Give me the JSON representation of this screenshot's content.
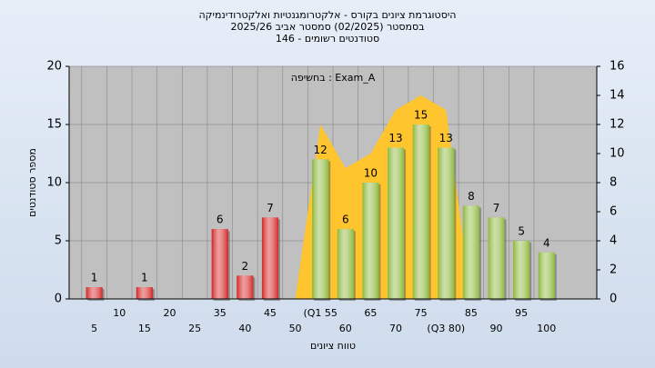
{
  "chart_data": {
    "type": "bar",
    "title": [
      "היסטוגרמת ציונים בקורס - אלקטרומגנטיות ואלקטרודינמיקה",
      "בסמסטר (02/2025) סמסטר אביב 2025/26",
      "סטודנטים רשומים - 146"
    ],
    "annotation": "בחשיפה : Exam_A",
    "y_label": "מספר סטודנטים",
    "x_label": "טווח ציונים",
    "categories": [
      "5",
      "10",
      "15",
      "20",
      "25",
      "35",
      "40",
      "45",
      "50",
      "(Q1 55",
      "60",
      "65",
      "70",
      "75",
      "(Q3 80)",
      "85",
      "90",
      "95",
      "100"
    ],
    "values": [
      1,
      0,
      1,
      0,
      0,
      6,
      2,
      7,
      0,
      12,
      6,
      10,
      13,
      15,
      13,
      8,
      7,
      5,
      4
    ],
    "colors": [
      "#d42424",
      "#d42424",
      "#d42424",
      "#d42424",
      "#d42424",
      "#d42424",
      "#d42424",
      "#d42424",
      "#d42424",
      "#8db83c",
      "#8db83c",
      "#8db83c",
      "#8db83c",
      "#8db83c",
      "#8db83c",
      "#8db83c",
      "#8db83c",
      "#8db83c",
      "#8db83c"
    ],
    "area": {
      "color": "#ffc52e",
      "axis": "y2",
      "values": [
        null,
        null,
        null,
        null,
        null,
        null,
        null,
        null,
        0,
        12,
        9,
        10,
        13,
        14,
        13,
        0,
        null,
        null,
        null
      ]
    },
    "ylim": [
      0,
      20
    ],
    "yticks": [
      0,
      5,
      10,
      15,
      20
    ],
    "y2lim": [
      0,
      16
    ],
    "y2ticks": [
      0,
      2,
      4,
      6,
      8,
      10,
      12,
      14,
      16
    ],
    "grid": true
  }
}
